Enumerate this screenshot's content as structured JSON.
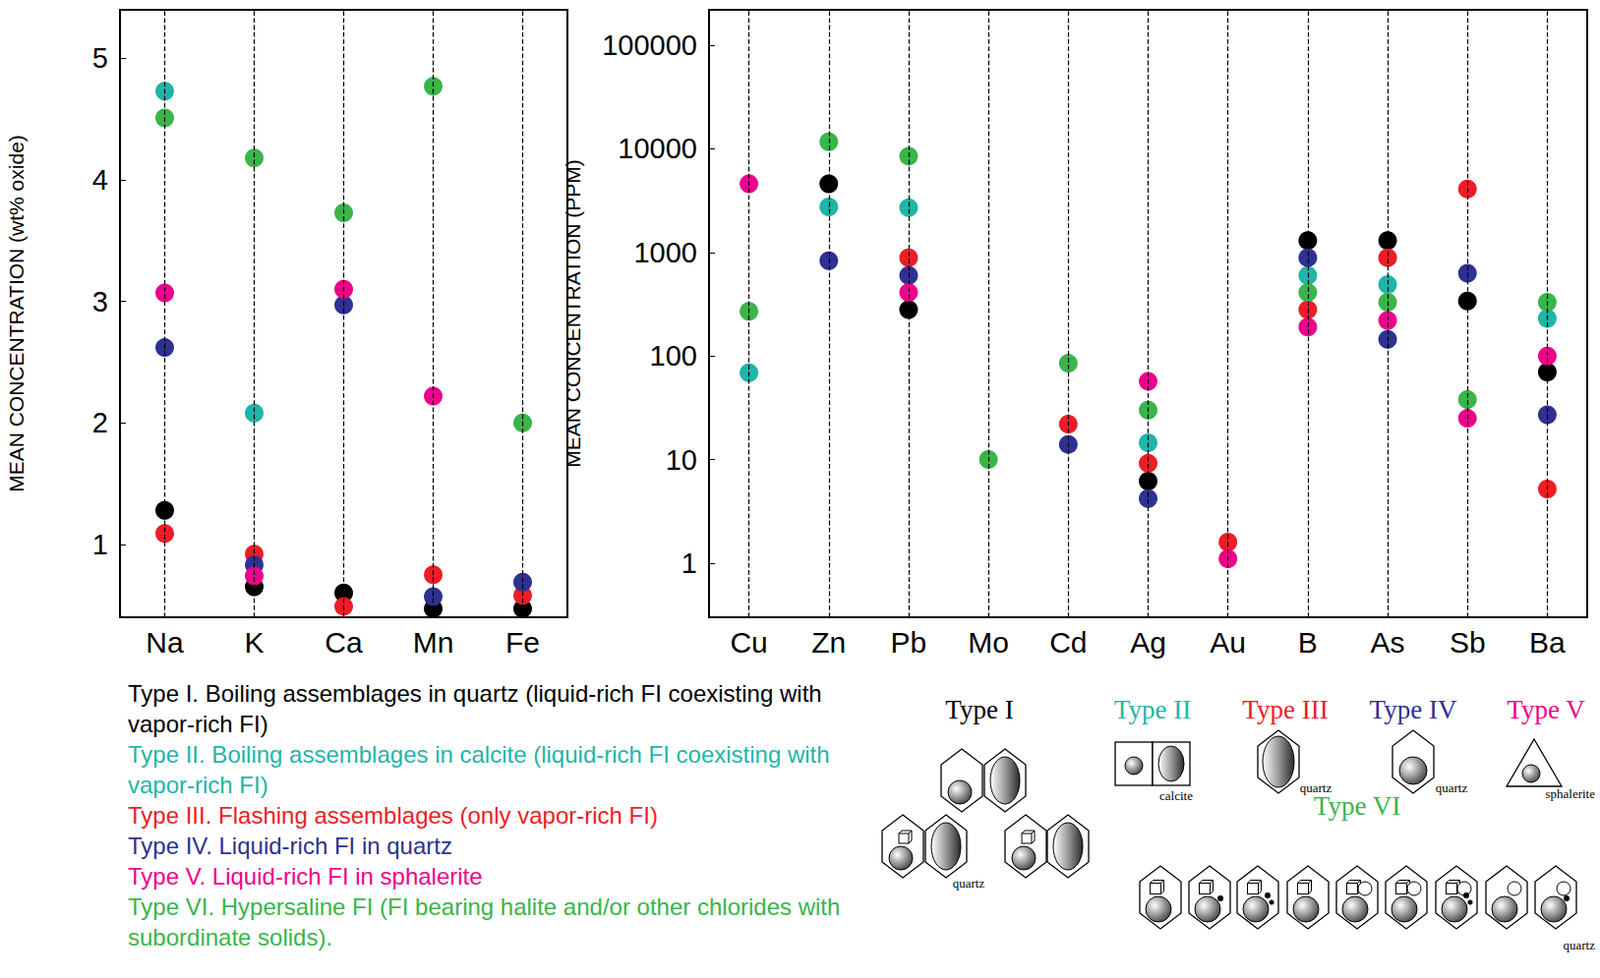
{
  "chart_data": [
    {
      "type": "scatter",
      "y_label": "MEAN CONCENTRATION (wt% oxide)",
      "categories": [
        "Na",
        "K",
        "Ca",
        "Mn",
        "Fe"
      ],
      "ylim": [
        0.4,
        5.4
      ],
      "yticks": [
        1,
        2,
        3,
        4,
        5
      ],
      "grid": false,
      "series": [
        {
          "name": "Type I",
          "color": "#000000",
          "values": [
            1.28,
            0.65,
            0.6,
            0.47,
            0.47
          ]
        },
        {
          "name": "Type II",
          "color": "#1fb5a8",
          "values": [
            4.73,
            2.08,
            null,
            null,
            null
          ]
        },
        {
          "name": "Type III",
          "color": "#ee1c25",
          "values": [
            1.09,
            0.92,
            0.49,
            0.75,
            0.58
          ]
        },
        {
          "name": "Type IV",
          "color": "#2e3192",
          "values": [
            2.62,
            0.83,
            2.97,
            0.57,
            0.69
          ]
        },
        {
          "name": "Type V",
          "color": "#ec008c",
          "values": [
            3.07,
            0.74,
            3.1,
            2.22,
            null
          ]
        },
        {
          "name": "Type VI",
          "color": "#39b54a",
          "values": [
            4.51,
            4.18,
            3.73,
            4.77,
            2.0
          ]
        }
      ]
    },
    {
      "type": "scatter",
      "y_label": "MEAN CONCENTRATION (PPM)",
      "categories": [
        "Cu",
        "Zn",
        "Pb",
        "Mo",
        "Cd",
        "Ag",
        "Au",
        "B",
        "As",
        "Sb",
        "Ba"
      ],
      "log": "y",
      "ylim": [
        0.3,
        220000
      ],
      "yticks": [
        1,
        10,
        100,
        1000,
        10000,
        100000
      ],
      "grid": false,
      "series": [
        {
          "name": "Type I",
          "color": "#000000",
          "values": [
            null,
            4600,
            280,
            null,
            null,
            6.2,
            null,
            1300,
            1300,
            340,
            70
          ]
        },
        {
          "name": "Type II",
          "color": "#1fb5a8",
          "values": [
            69,
            2750,
            2700,
            null,
            null,
            14.5,
            null,
            600,
            490,
            null,
            230
          ]
        },
        {
          "name": "Type III",
          "color": "#ee1c25",
          "values": [
            null,
            null,
            890,
            null,
            22,
            9.2,
            1.6,
            280,
            890,
            4100,
            5.2
          ]
        },
        {
          "name": "Type IV",
          "color": "#2e3192",
          "values": [
            null,
            830,
            600,
            null,
            14,
            4.2,
            null,
            890,
            145,
            630,
            27
          ]
        },
        {
          "name": "Type V",
          "color": "#ec008c",
          "values": [
            4600,
            null,
            410,
            null,
            null,
            57,
            1.1,
            190,
            220,
            25,
            100
          ]
        },
        {
          "name": "Type VI",
          "color": "#39b54a",
          "values": [
            270,
            11700,
            8500,
            10,
            85,
            30,
            null,
            410,
            330,
            38,
            330
          ]
        }
      ]
    }
  ],
  "key": [
    {
      "text": "Type I. Boiling assemblages in quartz (liquid-rich FI coexisting with vapor-rich FI)",
      "color": "#000000"
    },
    {
      "text": "Type II. Boiling assemblages in calcite (liquid-rich FI coexisting with vapor-rich FI)",
      "color": "#1fb5a8"
    },
    {
      "text": "Type III. Flashing assemblages (only vapor-rich FI)",
      "color": "#ee1c25"
    },
    {
      "text": "Type IV. Liquid-rich FI in quartz",
      "color": "#2e3192"
    },
    {
      "text": "Type V. Liquid-rich FI in sphalerite",
      "color": "#ec008c"
    },
    {
      "text": "Type VI. Hypersaline FI (FI bearing halite and/or other chlorides with subordinate solids).",
      "color": "#39b54a"
    }
  ],
  "schematic": [
    {
      "label": "Type I",
      "color": "#000000",
      "host": "quartz"
    },
    {
      "label": "Type II",
      "color": "#1fb5a8",
      "host": "calcite"
    },
    {
      "label": "Type III",
      "color": "#ee1c25",
      "host": "quartz"
    },
    {
      "label": "Type IV",
      "color": "#2e3192",
      "host": "quartz"
    },
    {
      "label": "Type V",
      "color": "#ec008c",
      "host": "sphalerite"
    },
    {
      "label": "Type VI",
      "color": "#39b54a",
      "host": "quartz"
    }
  ]
}
